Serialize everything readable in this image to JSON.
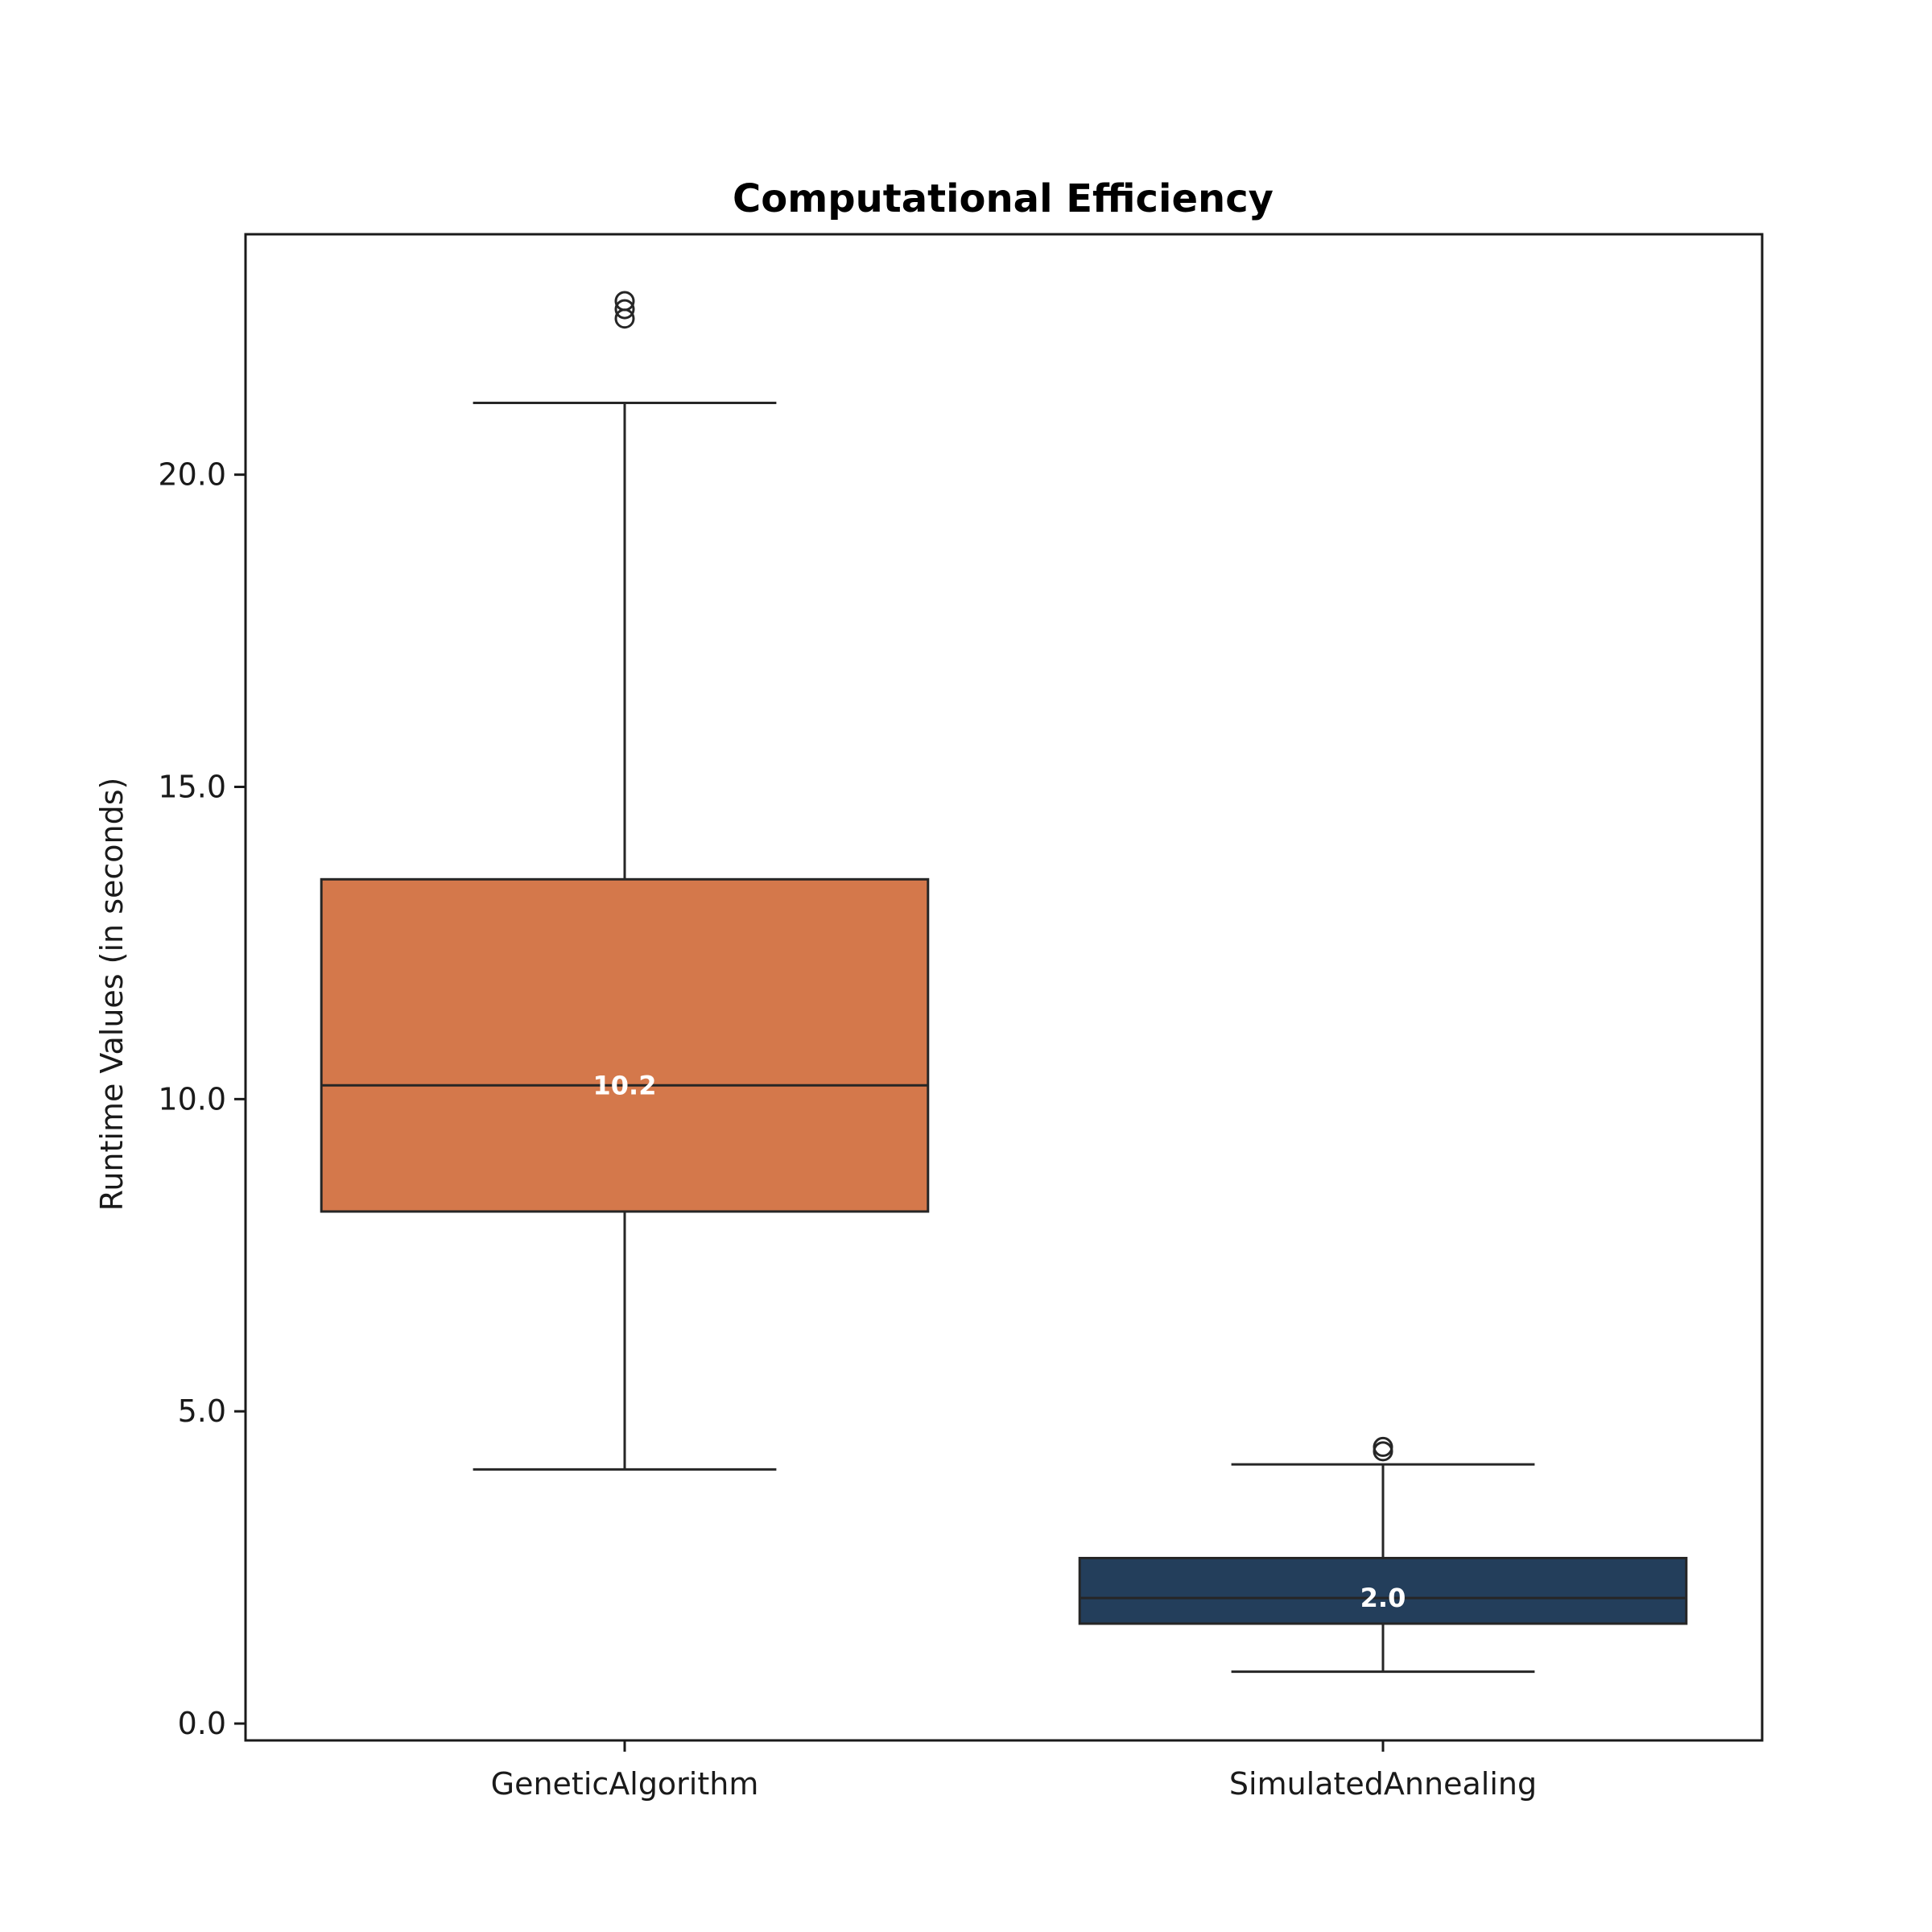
{
  "chart_data": {
    "type": "box",
    "title": "Computational Efficiency",
    "xlabel": "",
    "ylabel": "Runtime Values (in seconds)",
    "ylim": [
      -0.27,
      23.85
    ],
    "yticks": [
      0.0,
      5.0,
      10.0,
      15.0,
      20.0
    ],
    "ytick_labels": [
      "0.0",
      "5.0",
      "10.0",
      "15.0",
      "20.0"
    ],
    "grid": false,
    "categories": [
      "GeneticAlgorithm",
      "SimulatedAnnealing"
    ],
    "boxes": [
      {
        "name": "GeneticAlgorithm",
        "color": "#d4784b",
        "whisker_low": 4.07,
        "q1": 8.2,
        "median": 10.22,
        "q3": 13.52,
        "whisker_high": 21.15,
        "outliers": [
          22.5,
          22.65,
          22.78
        ],
        "median_label": "10.2"
      },
      {
        "name": "SimulatedAnnealing",
        "color": "#233e5b",
        "whisker_low": 0.83,
        "q1": 1.6,
        "median": 2.01,
        "q3": 2.65,
        "whisker_high": 4.15,
        "outliers": [
          4.36,
          4.43
        ],
        "median_label": "2.0"
      }
    ]
  }
}
